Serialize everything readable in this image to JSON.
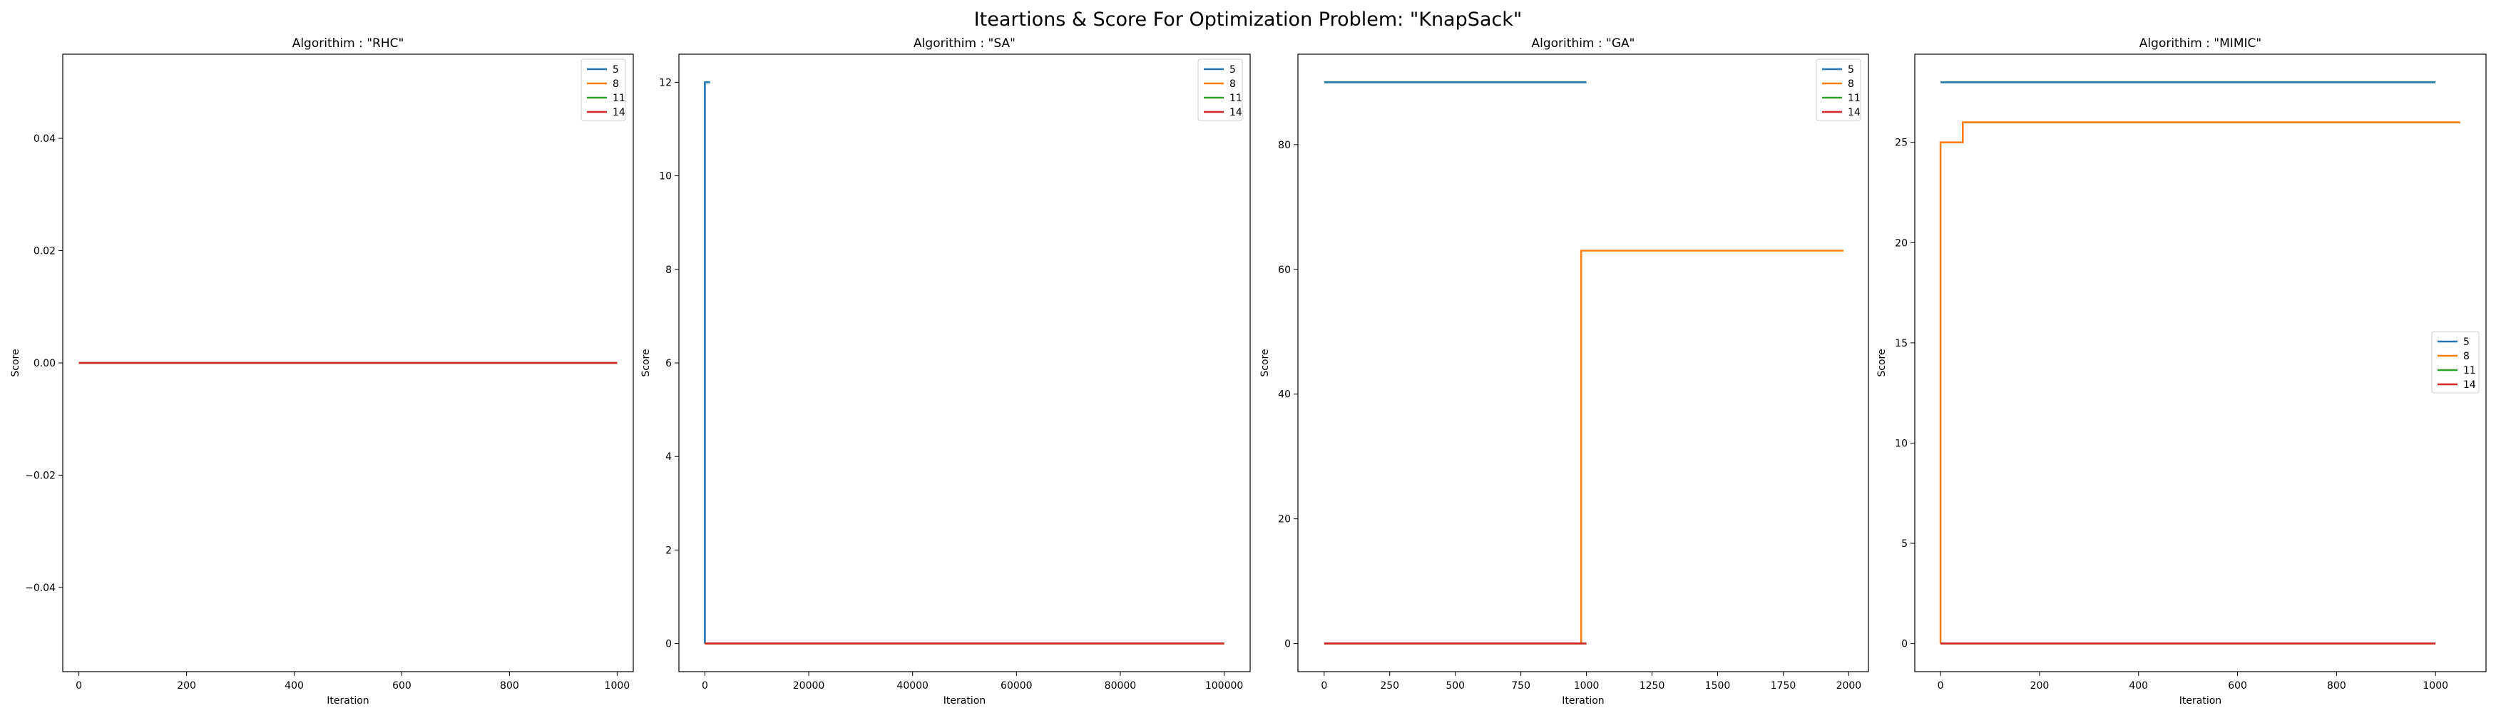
{
  "figure": {
    "title": "Iteartions & Score For Optimization Problem: \"KnapSack\""
  },
  "colors": {
    "5": "#1f77b4",
    "8": "#ff7f0e",
    "11": "#2ca02c",
    "14": "#d62728"
  },
  "chart_data": [
    {
      "type": "line",
      "title": "Algorithim : \"RHC\"",
      "xlabel": "Iteration",
      "ylabel": "Score",
      "xlim": [
        -30,
        1030
      ],
      "ylim": [
        -0.055,
        0.055
      ],
      "xticks": [
        0,
        200,
        400,
        600,
        800,
        1000
      ],
      "yticks": [
        -0.04,
        -0.02,
        0.0,
        0.02,
        0.04
      ],
      "ytick_labels": [
        "−0.04",
        "−0.02",
        "0.00",
        "0.02",
        "0.04"
      ],
      "legend": "upper right",
      "series": [
        {
          "name": "5",
          "color": "#1f77b4",
          "points": [
            [
              0,
              0
            ],
            [
              1000,
              0
            ]
          ]
        },
        {
          "name": "8",
          "color": "#ff7f0e",
          "points": [
            [
              0,
              0
            ],
            [
              1000,
              0
            ]
          ]
        },
        {
          "name": "11",
          "color": "#2ca02c",
          "points": [
            [
              0,
              0
            ],
            [
              1000,
              0
            ]
          ]
        },
        {
          "name": "14",
          "color": "#d62728",
          "points": [
            [
              0,
              0
            ],
            [
              1000,
              0
            ]
          ]
        }
      ]
    },
    {
      "type": "line",
      "title": "Algorithim : \"SA\"",
      "xlabel": "Iteration",
      "ylabel": "Score",
      "xlim": [
        -5000,
        105000
      ],
      "ylim": [
        -0.6,
        12.6
      ],
      "xticks": [
        0,
        20000,
        40000,
        60000,
        80000,
        100000
      ],
      "yticks": [
        0,
        2,
        4,
        6,
        8,
        10,
        12
      ],
      "legend": "upper right",
      "series": [
        {
          "name": "5",
          "color": "#1f77b4",
          "points": [
            [
              0,
              0
            ],
            [
              0,
              12
            ],
            [
              1000,
              12
            ]
          ]
        },
        {
          "name": "8",
          "color": "#ff7f0e",
          "points": [
            [
              0,
              0
            ],
            [
              100000,
              0
            ]
          ]
        },
        {
          "name": "11",
          "color": "#2ca02c",
          "points": [
            [
              0,
              0
            ],
            [
              100000,
              0
            ]
          ]
        },
        {
          "name": "14",
          "color": "#d62728",
          "points": [
            [
              0,
              0
            ],
            [
              100000,
              0
            ]
          ]
        }
      ]
    },
    {
      "type": "line",
      "title": "Algorithim : \"GA\"",
      "xlabel": "Iteration",
      "ylabel": "Score",
      "xlim": [
        -100,
        2075
      ],
      "ylim": [
        -4.5,
        94.5
      ],
      "xticks": [
        0,
        250,
        500,
        750,
        1000,
        1250,
        1500,
        1750,
        2000
      ],
      "yticks": [
        0,
        20,
        40,
        60,
        80
      ],
      "legend": "upper right",
      "series": [
        {
          "name": "5",
          "color": "#1f77b4",
          "points": [
            [
              0,
              90
            ],
            [
              1000,
              90
            ]
          ]
        },
        {
          "name": "8",
          "color": "#ff7f0e",
          "points": [
            [
              0,
              0
            ],
            [
              980,
              0
            ],
            [
              980,
              63
            ],
            [
              1980,
              63
            ]
          ]
        },
        {
          "name": "11",
          "color": "#2ca02c",
          "points": [
            [
              0,
              0
            ],
            [
              1000,
              0
            ]
          ]
        },
        {
          "name": "14",
          "color": "#d62728",
          "points": [
            [
              0,
              0
            ],
            [
              1000,
              0
            ]
          ]
        }
      ]
    },
    {
      "type": "line",
      "title": "Algorithim : \"MIMIC\"",
      "xlabel": "Iteration",
      "ylabel": "Score",
      "xlim": [
        -52,
        1102
      ],
      "ylim": [
        -1.4,
        29.4
      ],
      "xticks": [
        0,
        200,
        400,
        600,
        800,
        1000
      ],
      "yticks": [
        0,
        5,
        10,
        15,
        20,
        25
      ],
      "legend": "center right",
      "series": [
        {
          "name": "5",
          "color": "#1f77b4",
          "points": [
            [
              0,
              28
            ],
            [
              1000,
              28
            ]
          ]
        },
        {
          "name": "8",
          "color": "#ff7f0e",
          "points": [
            [
              0,
              0
            ],
            [
              0,
              25
            ],
            [
              45,
              25
            ],
            [
              45,
              26
            ],
            [
              1050,
              26
            ]
          ]
        },
        {
          "name": "11",
          "color": "#2ca02c",
          "points": [
            [
              0,
              0
            ],
            [
              1000,
              0
            ]
          ]
        },
        {
          "name": "14",
          "color": "#d62728",
          "points": [
            [
              0,
              0
            ],
            [
              1000,
              0
            ]
          ]
        }
      ]
    }
  ]
}
